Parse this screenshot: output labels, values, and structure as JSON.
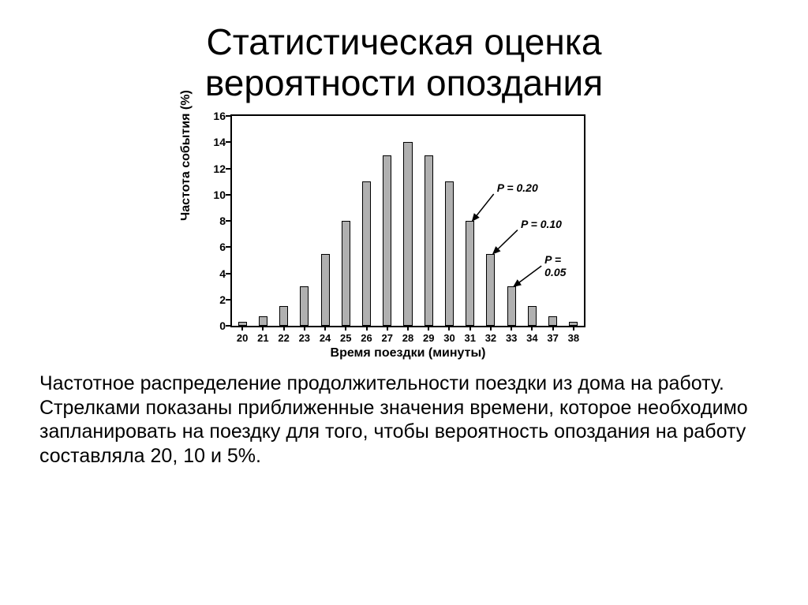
{
  "title_line1": "Статистическая оценка",
  "title_line2": "вероятности опоздания",
  "chart": {
    "type": "bar",
    "y_label": "Частота события (%)",
    "x_label": "Время поездки (минуты)",
    "categories": [
      "20",
      "21",
      "22",
      "23",
      "24",
      "25",
      "26",
      "27",
      "28",
      "29",
      "30",
      "31",
      "32",
      "33",
      "34",
      "37",
      "38"
    ],
    "values": [
      0.3,
      0.7,
      1.5,
      3.0,
      5.5,
      8.0,
      11.0,
      13.0,
      14.0,
      13.0,
      11.0,
      8.0,
      5.5,
      3.0,
      1.5,
      0.7,
      0.3
    ],
    "bar_color": "#b0b0b0",
    "bar_border_color": "#000000",
    "background_color": "#ffffff",
    "axis_color": "#000000",
    "ylim": [
      0,
      16
    ],
    "ytick_step": 2,
    "yticks": [
      0,
      2,
      4,
      6,
      8,
      10,
      12,
      14,
      16
    ],
    "bar_width_ratio": 0.42,
    "tick_fontsize": 14,
    "label_fontsize": 16,
    "annotation_fontsize": 14,
    "annotations": [
      {
        "text": "P = 0.20",
        "target_index": 11
      },
      {
        "text": "P = 0.10",
        "target_index": 12
      },
      {
        "text": "P = 0.05",
        "target_index": 13
      }
    ]
  },
  "caption": "Частотное распределение продолжительности поездки из дома на работу. Стрелками показаны приближенные зна­чения времени, которое необходимо запланировать на поездку для того, чтобы вероятность опоздания на работу составляла 20, 10 и 5%."
}
